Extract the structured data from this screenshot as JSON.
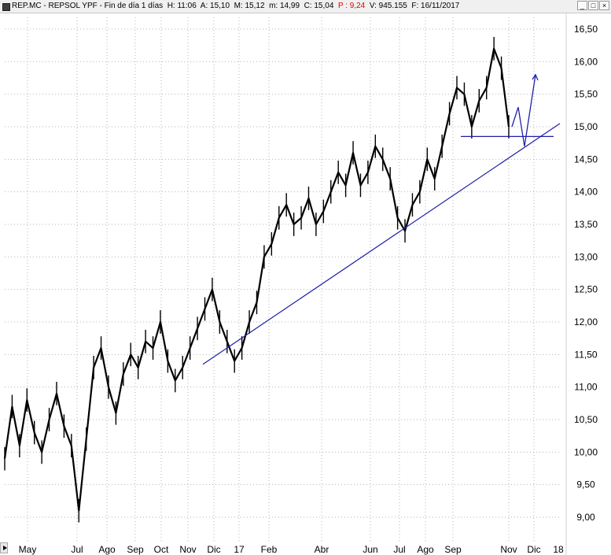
{
  "header": {
    "symbol": "REP.MC",
    "name": "REPSOL YPF",
    "period": "Fin de día 1 días",
    "hour": "H: 11:06",
    "open": "A: 15,10",
    "high": "M: 15,12",
    "low": "m: 14,99",
    "close": "C: 15,04",
    "pct": "P : 9,24",
    "volume": "V: 945.155",
    "date": "F: 16/11/2017"
  },
  "window_buttons": [
    "_",
    "□",
    "×"
  ],
  "colors": {
    "price": "#000000",
    "trendline": "#1f1fa8",
    "pct_text": "#e00000",
    "grid": "#b4b4b4"
  },
  "chart_data": {
    "type": "line",
    "ylim": [
      8.8,
      16.7
    ],
    "y_ticks": [
      "16,50",
      "16,00",
      "15,50",
      "15,00",
      "14,50",
      "14,00",
      "13,50",
      "13,00",
      "12,50",
      "12,00",
      "11,50",
      "11,00",
      "10,50",
      "10,00",
      "9,50",
      "9,00"
    ],
    "y_tick_values": [
      16.5,
      16.0,
      15.5,
      15.0,
      14.5,
      14.0,
      13.5,
      13.0,
      12.5,
      12.0,
      11.5,
      11.0,
      10.5,
      10.0,
      9.5,
      9.0
    ],
    "x_ticks": [
      "May",
      "Jul",
      "Ago",
      "Sep",
      "Oct",
      "Nov",
      "Dic",
      "17",
      "Feb",
      "Abr",
      "Jun",
      "Jul",
      "Ago",
      "Sep",
      "Nov",
      "Dic",
      "18"
    ],
    "grid": true,
    "series": [
      {
        "values": [
          9.9,
          10.7,
          10.1,
          10.8,
          10.3,
          10.0,
          10.5,
          10.9,
          10.4,
          10.1,
          9.1,
          10.2,
          11.3,
          11.6,
          11.0,
          10.6,
          11.2,
          11.5,
          11.3,
          11.7,
          11.6,
          12.0,
          11.4,
          11.1,
          11.3,
          11.6,
          11.9,
          12.2,
          12.5,
          12.0,
          11.7,
          11.4,
          11.6,
          12.0,
          12.3,
          13.0,
          13.2,
          13.6,
          13.8,
          13.5,
          13.6,
          13.9,
          13.5,
          13.7,
          14.0,
          14.3,
          14.1,
          14.6,
          14.1,
          14.3,
          14.7,
          14.5,
          14.2,
          13.6,
          13.4,
          13.8,
          14.0,
          14.5,
          14.2,
          14.7,
          15.2,
          15.6,
          15.5,
          15.0,
          15.4,
          15.6,
          16.2,
          15.9,
          15.0
        ],
        "x_end_tick": "Nov"
      }
    ],
    "annotations": [
      {
        "kind": "trendline",
        "from": {
          "tick": "Nov",
          "value": 11.35
        },
        "to": {
          "tick": "Dic (2017)",
          "value": 15.05
        }
      },
      {
        "kind": "support",
        "value": 14.85
      },
      {
        "kind": "projection",
        "values": [
          15.0,
          15.3,
          14.7,
          15.8
        ]
      }
    ]
  }
}
